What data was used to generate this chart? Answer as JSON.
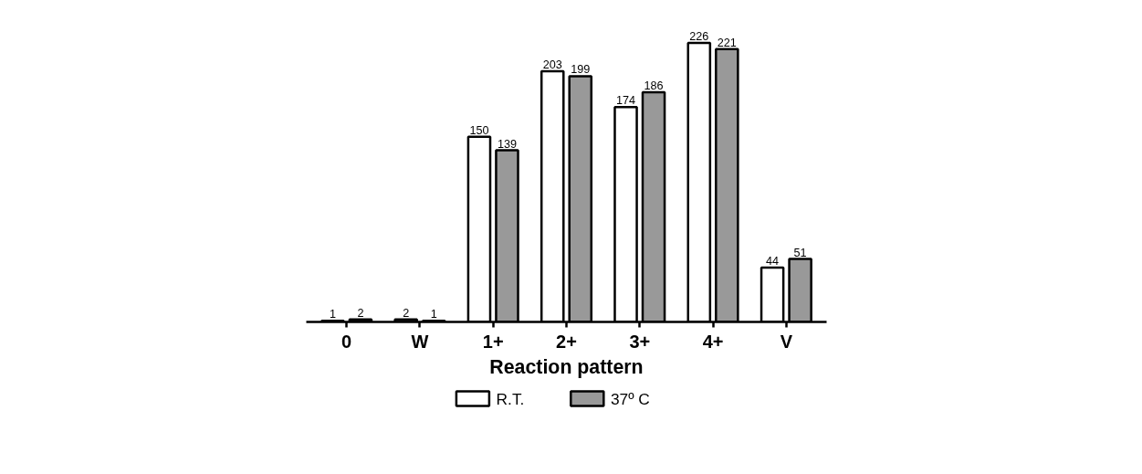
{
  "chart_data": {
    "type": "bar",
    "xlabel": "Reaction pattern",
    "categories": [
      "0",
      "W",
      "1+",
      "2+",
      "3+",
      "4+",
      "V"
    ],
    "series": [
      {
        "name": "R.T.",
        "color": "#ffffff",
        "values": [
          1,
          2,
          150,
          203,
          174,
          226,
          44
        ]
      },
      {
        "name": "37º C",
        "color": "#999999",
        "values": [
          2,
          1,
          139,
          199,
          186,
          221,
          51
        ]
      }
    ],
    "data_labels": true,
    "legend": "bottom",
    "grid": false
  }
}
